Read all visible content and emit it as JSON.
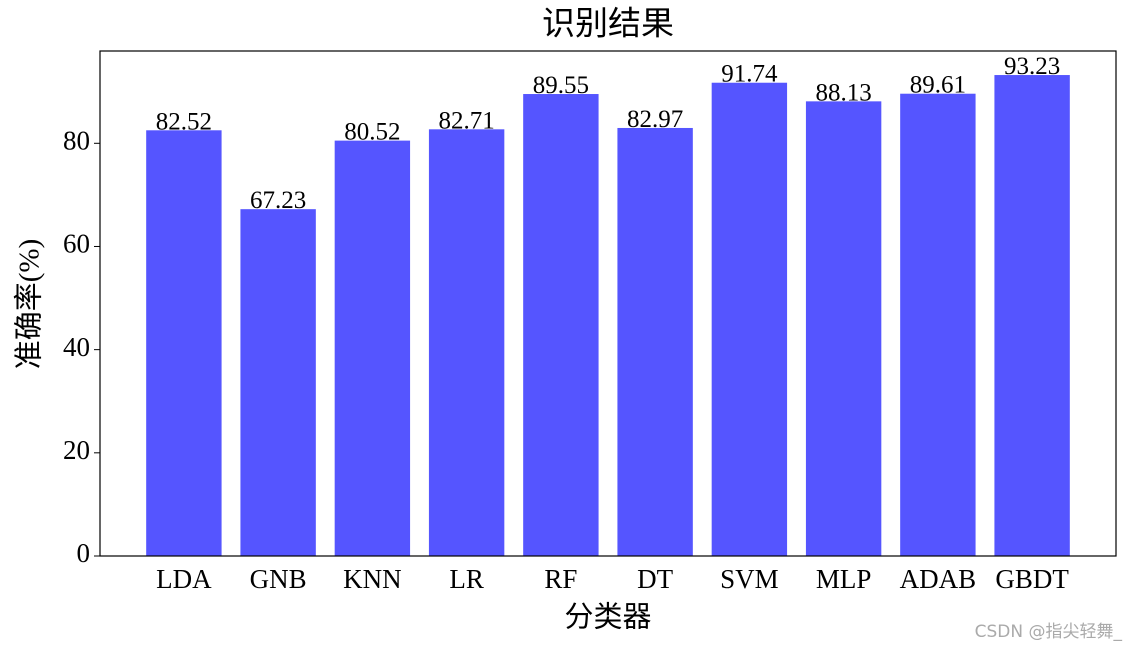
{
  "chart_data": {
    "type": "bar",
    "title": "识别结果",
    "x_label": "分类器",
    "y_label": "准确率(%)",
    "categories": [
      "LDA",
      "GNB",
      "KNN",
      "LR",
      "RF",
      "DT",
      "SVM",
      "MLP",
      "ADAB",
      "GBDT"
    ],
    "values": [
      82.52,
      67.23,
      80.52,
      82.71,
      89.55,
      82.97,
      91.74,
      88.13,
      89.61,
      93.23
    ],
    "color": "#5555ff",
    "ylim": [
      0,
      97.89
    ],
    "yticks": [
      0,
      20,
      40,
      60,
      80
    ],
    "grid": false,
    "show_value_labels": true
  },
  "watermark": "CSDN @指尖轻舞_"
}
